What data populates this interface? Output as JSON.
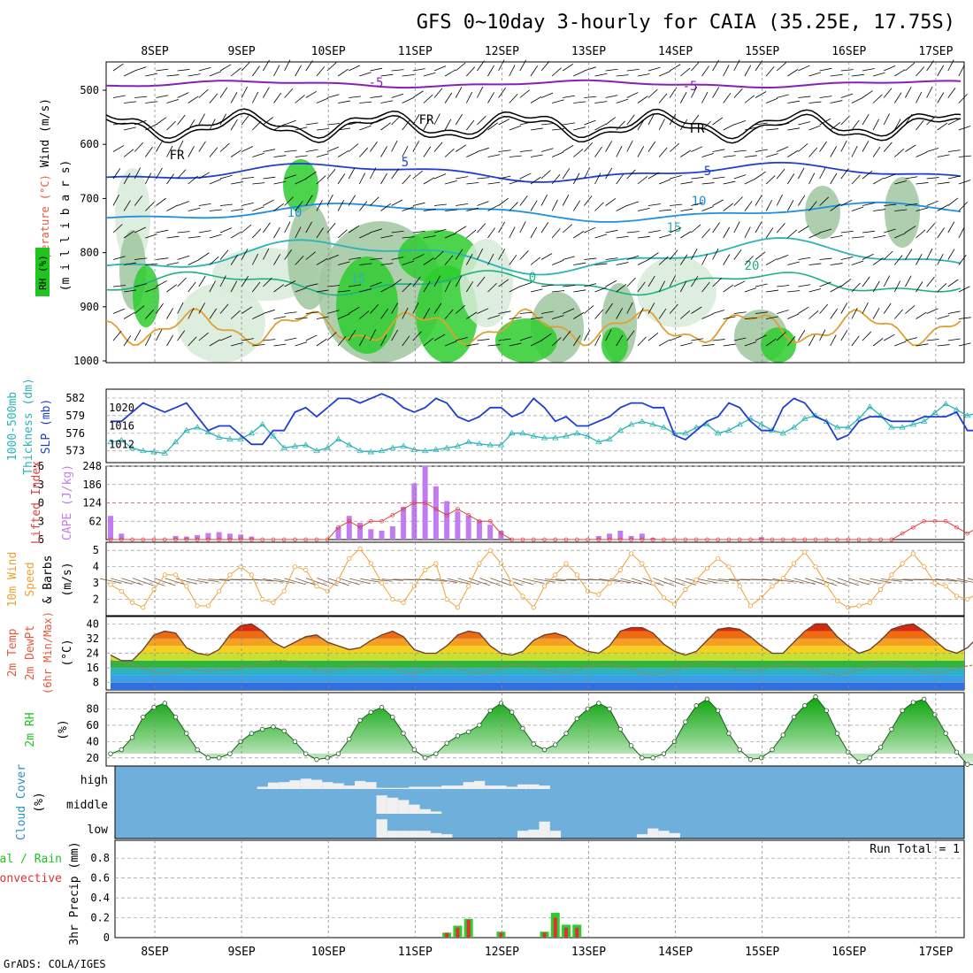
{
  "title": "GFS 0~10day 3-hourly for CAIA (35.25E, 17.75S)",
  "footer": "GrADS: COLA/IGES",
  "dates": [
    "8SEP",
    "9SEP",
    "10SEP",
    "11SEP",
    "12SEP",
    "13SEP",
    "14SEP",
    "15SEP",
    "16SEP",
    "17SEP"
  ],
  "colors": {
    "slp": "#1f3fd0",
    "thickness": "#2bb3b8",
    "cape": "#c07cf0",
    "lifted_index": "#e04040",
    "wind_speed": "#f0a030",
    "barbs": "#7a5a3a",
    "temp_line": "#6b3a2a",
    "dewpt_line": "#a08060",
    "rh_green": "#1fc41f",
    "cloud_bg": "#6fafdc",
    "cloud_fill": "#f0f0f0",
    "precip_total": "#2ecc2e",
    "precip_conv": "#e03030"
  },
  "panels": {
    "upper": {
      "axis_label_wind": "Wind (m/s)",
      "axis_label_temp": "Temperature (°C)",
      "axis_label_rh": "RH (%)",
      "axis_label_mb": "(m i l l i b a r s)",
      "yticks": [
        "500",
        "600",
        "700",
        "800",
        "900",
        "1000"
      ],
      "contour_labels": [
        "-5",
        "-5",
        "FR",
        "FR",
        "FR",
        "5",
        "5",
        "10",
        "10",
        "15",
        "15",
        "20",
        "0"
      ]
    },
    "thickness": {
      "label_left": "1000-500mb",
      "label_left2": "Thickness (dm)",
      "label_right": "SLP (mb)",
      "yticks_left": [
        "582",
        "579",
        "576",
        "573"
      ],
      "yticks_right": [
        "1020",
        "1016",
        "1012"
      ]
    },
    "cape": {
      "label_left": "Lifted Index",
      "label_right": "CAPE (J/kg)",
      "yticks_left": [
        "-6",
        "-3",
        "0",
        "3",
        "6"
      ],
      "yticks_right": [
        "248",
        "186",
        "124",
        "62"
      ]
    },
    "wind10": {
      "label1": "10m Wind",
      "label2": "Speed",
      "label3": "& Barbs",
      "unit": "(m/s)",
      "yticks": [
        "5",
        "4",
        "3",
        "2"
      ]
    },
    "temp2m": {
      "label1": "2m Temp",
      "label2": "2m DewPt",
      "label3": "(6hr Min/Max)",
      "unit": "(°C)",
      "yticks": [
        "40",
        "32",
        "24",
        "16",
        "8"
      ]
    },
    "rh2m": {
      "label1": "2m RH",
      "unit": "(%)",
      "yticks": [
        "80",
        "60",
        "40",
        "20"
      ]
    },
    "cloud": {
      "label1": "Cloud Cover",
      "unit": "(%)",
      "levels": [
        "high",
        "middle",
        "low"
      ]
    },
    "precip": {
      "label1": "Total / Rain",
      "label2": "Convective",
      "label3": "3hr Precip (mm)",
      "run_total": "Run Total = 1",
      "yticks": [
        "0.8",
        "0.6",
        "0.4",
        "0.2",
        "0"
      ]
    }
  },
  "chart_data": {
    "type": "line",
    "x_step_hours": 3,
    "slp_mb": [
      1017,
      1017,
      1019,
      1021,
      1020,
      1019,
      1020,
      1021,
      1018,
      1015,
      1016,
      1016,
      1014,
      1012,
      1012,
      1015,
      1015,
      1019,
      1020,
      1018,
      1020,
      1022,
      1022,
      1021,
      1022,
      1023,
      1022,
      1020,
      1019,
      1020,
      1022,
      1021,
      1018,
      1017,
      1018,
      1020,
      1020,
      1018,
      1019,
      1022,
      1020,
      1017,
      1018,
      1016,
      1016,
      1017,
      1018,
      1020,
      1021,
      1021,
      1020,
      1020,
      1014,
      1013,
      1015,
      1017,
      1018,
      1021,
      1020,
      1017,
      1015,
      1015,
      1020,
      1022,
      1021,
      1018,
      1017,
      1013,
      1014,
      1017,
      1018,
      1018,
      1017,
      1017,
      1017,
      1018,
      1018,
      1018,
      1019,
      1015,
      1015,
      1016,
      1014,
      1014,
      1015,
      1016,
      1010,
      1010,
      1013,
      1014,
      1015,
      1016
    ],
    "thickness_dm": [
      574.5,
      574.8,
      573.5,
      573.0,
      572.8,
      572.6,
      574.5,
      576.5,
      577.0,
      576.2,
      575.3,
      575.0,
      575.0,
      576.0,
      577.5,
      575.5,
      573.5,
      573.8,
      574.0,
      573.0,
      573.5,
      575.0,
      574.0,
      573.0,
      572.8,
      573.0,
      573.5,
      573.8,
      573.2,
      573.0,
      573.2,
      573.5,
      573.8,
      574.5,
      574.2,
      574.0,
      574.0,
      576.0,
      576.0,
      575.5,
      575.2,
      575.2,
      575.5,
      576.0,
      575.5,
      574.5,
      575.0,
      576.5,
      577.5,
      578.0,
      577.5,
      577.0,
      576.0,
      576.0,
      577.0,
      577.5,
      576.0,
      576.5,
      577.5,
      578.5,
      577.5,
      576.5,
      576.0,
      577.0,
      578.5,
      579.0,
      578.0,
      577.0,
      577.0,
      578.5,
      580.5,
      579.0,
      577.0,
      577.0,
      577.5,
      578.0,
      579.5,
      581.0,
      580.0,
      579.0,
      579.5,
      580.0,
      578.5,
      578.0,
      579.5,
      581.5,
      580.0,
      579.0,
      578.5,
      577.5,
      577.0,
      577.5
    ],
    "cape_jkg": [
      80,
      20,
      0,
      0,
      0,
      0,
      12,
      10,
      15,
      22,
      25,
      20,
      17,
      10,
      0,
      0,
      0,
      0,
      0,
      0,
      0,
      42,
      80,
      57,
      35,
      30,
      45,
      110,
      190,
      250,
      180,
      130,
      95,
      80,
      65,
      50,
      30,
      0,
      0,
      0,
      0,
      0,
      0,
      0,
      0,
      12,
      20,
      30,
      12,
      20,
      5,
      0,
      0,
      0,
      0,
      0,
      0,
      0,
      0,
      0,
      8,
      0,
      0,
      0,
      0,
      0,
      0,
      0,
      0,
      0,
      0,
      0,
      0,
      0,
      0,
      0,
      0,
      0,
      0,
      0,
      0,
      0,
      0,
      0,
      0,
      0,
      0,
      0,
      0,
      0,
      20,
      5
    ],
    "lifted_index": [
      6,
      6,
      6,
      6,
      6,
      6,
      6,
      6,
      6,
      6,
      6,
      6,
      6,
      6,
      6,
      6,
      6,
      6,
      6,
      6,
      6,
      4,
      3,
      4,
      3,
      3,
      2,
      1,
      0,
      0,
      1,
      2,
      1,
      2,
      3,
      3,
      5,
      6,
      6,
      6,
      6,
      6,
      6,
      6,
      6,
      6,
      6,
      6,
      6,
      6,
      6,
      6,
      6,
      6,
      6,
      6,
      6,
      6,
      6,
      6,
      6,
      6,
      6,
      6,
      6,
      6,
      6,
      6,
      6,
      6,
      6,
      6,
      6,
      5,
      4,
      3,
      3,
      3,
      4,
      5,
      4,
      3,
      3,
      3,
      4,
      3,
      3,
      4,
      2,
      2,
      3,
      3,
      5,
      5,
      6
    ],
    "wind10_speed": [
      2.9,
      2.5,
      1.8,
      1.5,
      2.6,
      3.5,
      3.5,
      2.8,
      1.6,
      1.6,
      2.5,
      3.5,
      4.0,
      3.5,
      2.0,
      1.8,
      2.5,
      4.0,
      3.8,
      2.8,
      2.5,
      3.2,
      4.5,
      5.1,
      4.2,
      3.0,
      2.0,
      1.8,
      2.8,
      3.8,
      4.2,
      2.0,
      1.5,
      2.8,
      4.2,
      5.0,
      4.2,
      3.0,
      2.2,
      1.5,
      2.8,
      3.5,
      4.2,
      3.5,
      2.5,
      2.3,
      3.0,
      3.8,
      4.8,
      4.2,
      3.0,
      2.1,
      1.7,
      2.6,
      3.2,
      3.9,
      4.5,
      4.0,
      2.8,
      1.6,
      2.1,
      2.8,
      3.3,
      4.2,
      4.9,
      4.0,
      2.9,
      1.9,
      1.5,
      1.6,
      1.8,
      2.6,
      3.5,
      4.2,
      4.8,
      4.0,
      3.0,
      2.8,
      2.2,
      2.0,
      2.4,
      3.1,
      3.8,
      4.5,
      3.8,
      2.9,
      2.6,
      2.2,
      2.8,
      4.0,
      5.1,
      4.5,
      3.2,
      2.5,
      2.8,
      3.2
    ],
    "temp2m_c": [
      23,
      20,
      20,
      26,
      34,
      36,
      35,
      27,
      24,
      23,
      26,
      34,
      39,
      40,
      36,
      30,
      27,
      30,
      33,
      34,
      30,
      28,
      26,
      27,
      31,
      34,
      36,
      33,
      26,
      24,
      24,
      28,
      34,
      36,
      35,
      28,
      24,
      23,
      25,
      31,
      34,
      35,
      33,
      28,
      25,
      24,
      28,
      36,
      38,
      38,
      35,
      29,
      25,
      23,
      25,
      31,
      37,
      38,
      37,
      33,
      28,
      24,
      24,
      30,
      36,
      40,
      40,
      33,
      28,
      24,
      26,
      31,
      37,
      39,
      40,
      36,
      31,
      26,
      24,
      27,
      33,
      39,
      40,
      40,
      36,
      30,
      26,
      24,
      26,
      24
    ],
    "dewpt2m_c": [
      20,
      19,
      18,
      16,
      14,
      13,
      14,
      16,
      15,
      14,
      15,
      15,
      16,
      17,
      19,
      20,
      20,
      19,
      17,
      15,
      14,
      15,
      17,
      18,
      18,
      17,
      16,
      14,
      13,
      15,
      17,
      18,
      16,
      14,
      13,
      14,
      16,
      18,
      18,
      17,
      15,
      14,
      13,
      15,
      17,
      18,
      18,
      17,
      16,
      13,
      12,
      13,
      15,
      17,
      19,
      19,
      18,
      17,
      15,
      14,
      15,
      17,
      18,
      18,
      17,
      15,
      13,
      12,
      13,
      15,
      17,
      19,
      19,
      18,
      16,
      14,
      13,
      14,
      16,
      17,
      18,
      17,
      16,
      13,
      11,
      11,
      13,
      16,
      17,
      18,
      17,
      14,
      14,
      18,
      17
    ],
    "rh2m_pct": [
      25,
      30,
      45,
      70,
      82,
      87,
      70,
      50,
      30,
      20,
      20,
      25,
      40,
      50,
      55,
      58,
      53,
      40,
      25,
      18,
      20,
      25,
      43,
      66,
      76,
      82,
      70,
      50,
      30,
      20,
      25,
      38,
      47,
      52,
      60,
      78,
      87,
      76,
      56,
      37,
      30,
      36,
      50,
      68,
      80,
      87,
      80,
      55,
      35,
      20,
      20,
      25,
      40,
      64,
      84,
      92,
      78,
      50,
      30,
      18,
      20,
      30,
      48,
      70,
      84,
      95,
      78,
      50,
      27,
      15,
      20,
      33,
      55,
      78,
      88,
      92,
      73,
      50,
      27,
      12,
      11,
      18,
      40,
      65,
      80,
      87,
      73,
      48,
      27,
      20,
      45,
      66,
      82,
      90
    ],
    "cloud_high_pct": [
      0,
      0,
      0,
      0,
      0,
      0,
      0,
      0,
      0,
      0,
      0,
      0,
      0,
      0,
      10,
      28,
      30,
      38,
      45,
      40,
      30,
      25,
      15,
      35,
      30,
      5,
      5,
      5,
      10,
      10,
      10,
      15,
      15,
      30,
      35,
      15,
      15,
      10,
      20,
      20,
      15,
      0,
      0,
      0,
      0,
      0,
      0,
      0,
      0,
      0,
      0,
      0,
      0,
      0,
      0,
      0,
      0,
      0,
      0,
      0,
      0,
      0,
      0,
      0,
      0,
      0,
      0,
      0,
      0,
      0,
      0,
      0,
      0,
      0,
      0,
      0,
      0,
      0,
      0,
      0,
      0,
      0,
      0,
      0,
      0,
      0,
      0,
      0,
      0,
      0,
      0,
      0,
      0
    ],
    "cloud_mid_pct": [
      0,
      0,
      0,
      0,
      0,
      0,
      0,
      0,
      0,
      0,
      0,
      0,
      0,
      0,
      0,
      0,
      0,
      0,
      0,
      0,
      0,
      0,
      0,
      0,
      0,
      80,
      70,
      60,
      40,
      20,
      10,
      0,
      0,
      0,
      0,
      0,
      0,
      0,
      0,
      0,
      0,
      0,
      0,
      0,
      0,
      0,
      0,
      0,
      0,
      0,
      0,
      0,
      0,
      0,
      0,
      0,
      0,
      0,
      0,
      0,
      0,
      0,
      0,
      0,
      0,
      0,
      0,
      0,
      0,
      0,
      0,
      0,
      0,
      0,
      0,
      0,
      0,
      0,
      0,
      0,
      0,
      0,
      0,
      0,
      0,
      0,
      0,
      0,
      0,
      0,
      0,
      0,
      0
    ],
    "cloud_low_pct": [
      0,
      0,
      0,
      0,
      0,
      0,
      0,
      0,
      0,
      0,
      0,
      0,
      0,
      0,
      0,
      0,
      0,
      0,
      0,
      0,
      0,
      0,
      0,
      0,
      0,
      80,
      30,
      30,
      30,
      30,
      20,
      15,
      0,
      0,
      0,
      0,
      0,
      0,
      30,
      35,
      70,
      30,
      0,
      0,
      0,
      0,
      0,
      0,
      0,
      15,
      40,
      30,
      20,
      0,
      0,
      0,
      0,
      0,
      0,
      0,
      0,
      0,
      0,
      0,
      0,
      0,
      0,
      0,
      0,
      0,
      0,
      0,
      0,
      0,
      0,
      0,
      0,
      0,
      0,
      0,
      0,
      0,
      0,
      0,
      0,
      0,
      0,
      0,
      0,
      0,
      0,
      0,
      0
    ],
    "precip_total_mm": [
      0,
      0,
      0,
      0,
      0,
      0,
      0,
      0,
      0,
      0,
      0,
      0,
      0,
      0,
      0,
      0,
      0,
      0,
      0,
      0,
      0,
      0,
      0,
      0,
      0,
      0,
      0,
      0,
      0,
      0,
      0,
      0.05,
      0.12,
      0.19,
      0,
      0,
      0.06,
      0,
      0,
      0,
      0.06,
      0.25,
      0.13,
      0.13,
      0,
      0,
      0,
      0,
      0,
      0,
      0,
      0,
      0,
      0,
      0,
      0,
      0,
      0,
      0,
      0,
      0,
      0,
      0,
      0,
      0,
      0,
      0,
      0,
      0,
      0,
      0,
      0,
      0,
      0,
      0,
      0,
      0,
      0,
      0,
      0,
      0,
      0,
      0,
      0,
      0,
      0,
      0,
      0,
      0,
      0,
      0,
      0,
      0
    ],
    "precip_conv_mm": [
      0,
      0,
      0,
      0,
      0,
      0,
      0,
      0,
      0,
      0,
      0,
      0,
      0,
      0,
      0,
      0,
      0,
      0,
      0,
      0,
      0,
      0,
      0,
      0,
      0,
      0,
      0,
      0,
      0,
      0,
      0,
      0.05,
      0.1,
      0.18,
      0,
      0,
      0.05,
      0,
      0,
      0,
      0.05,
      0.2,
      0.1,
      0.1,
      0,
      0,
      0,
      0,
      0,
      0,
      0,
      0,
      0,
      0,
      0,
      0,
      0,
      0,
      0,
      0,
      0,
      0,
      0,
      0,
      0,
      0,
      0,
      0,
      0,
      0,
      0,
      0,
      0,
      0,
      0,
      0,
      0,
      0,
      0,
      0,
      0,
      0,
      0,
      0,
      0,
      0,
      0,
      0,
      0,
      0,
      0,
      0,
      0
    ]
  }
}
